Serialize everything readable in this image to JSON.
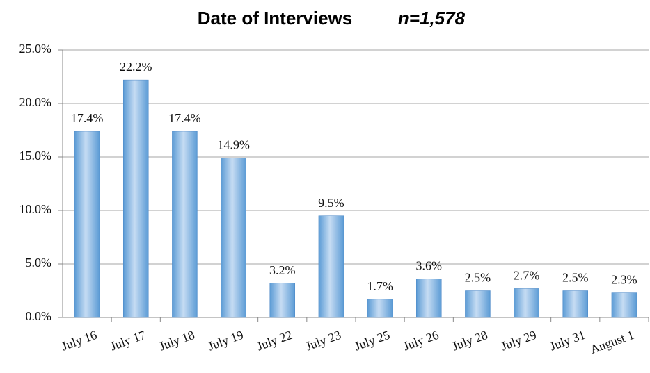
{
  "chart_data": {
    "type": "bar",
    "title": "Date of Interviews",
    "subtitle": "n=1,578",
    "categories": [
      "July 16",
      "July 17",
      "July 18",
      "July 19",
      "July 22",
      "July 23",
      "July 25",
      "July 26",
      "July 28",
      "July 29",
      "July 31",
      "August 1"
    ],
    "values": [
      17.4,
      22.2,
      17.4,
      14.9,
      3.2,
      9.5,
      1.7,
      3.6,
      2.5,
      2.7,
      2.5,
      2.3
    ],
    "value_labels": [
      "17.4%",
      "22.2%",
      "17.4%",
      "14.9%",
      "3.2%",
      "9.5%",
      "1.7%",
      "3.6%",
      "2.5%",
      "2.7%",
      "2.5%",
      "2.3%"
    ],
    "color": "#5b9bd5",
    "ylim": [
      0,
      25
    ],
    "yticks": [
      {
        "value": 0,
        "label": "0.0%"
      },
      {
        "value": 5,
        "label": "5.0%"
      },
      {
        "value": 10,
        "label": "10.0%"
      },
      {
        "value": 15,
        "label": "15.0%"
      },
      {
        "value": 20,
        "label": "20.0%"
      },
      {
        "value": 25,
        "label": "25.0%"
      }
    ],
    "grid": true
  }
}
